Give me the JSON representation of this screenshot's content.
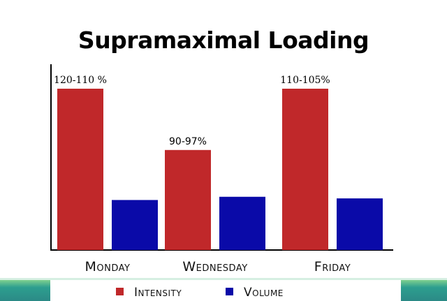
{
  "chart_data": {
    "type": "bar",
    "title": "Supramaximal Loading",
    "categories": [
      "Monday",
      "Wednesday",
      "Friday"
    ],
    "series": [
      {
        "name": "Intensity",
        "color": "#c0282a",
        "values": [
          100,
          62,
          100
        ],
        "labels": [
          "120-110 %",
          "90-97%",
          "110-105%"
        ]
      },
      {
        "name": "Volume",
        "color": "#0a0aa8",
        "values": [
          31,
          33,
          32
        ],
        "labels": [
          "",
          "",
          ""
        ]
      }
    ],
    "legend": {
      "position": "bottom-center"
    },
    "grid": false
  }
}
